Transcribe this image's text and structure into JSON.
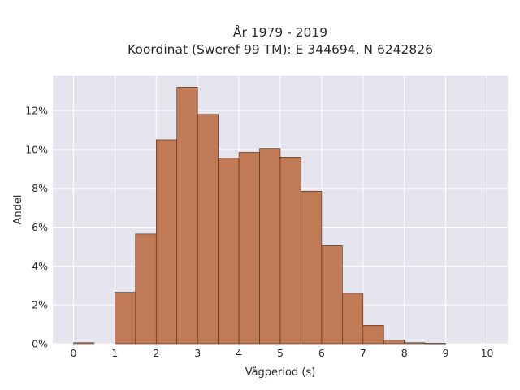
{
  "chart_data": {
    "type": "bar",
    "title_line1": "År 1979 - 2019",
    "title_line2": "Koordinat (Sweref 99 TM): E 344694, N 6242826",
    "xlabel": "Vågperiod (s)",
    "ylabel": "Andel",
    "bin_width": 0.5,
    "bins": [
      {
        "x0": 0.0,
        "value": 0.05
      },
      {
        "x0": 0.5,
        "value": 0.0
      },
      {
        "x0": 1.0,
        "value": 2.65
      },
      {
        "x0": 1.5,
        "value": 5.65
      },
      {
        "x0": 2.0,
        "value": 10.5
      },
      {
        "x0": 2.5,
        "value": 13.2
      },
      {
        "x0": 3.0,
        "value": 11.8
      },
      {
        "x0": 3.5,
        "value": 9.55
      },
      {
        "x0": 4.0,
        "value": 9.85
      },
      {
        "x0": 4.5,
        "value": 10.05
      },
      {
        "x0": 5.0,
        "value": 9.6
      },
      {
        "x0": 5.5,
        "value": 7.85
      },
      {
        "x0": 6.0,
        "value": 5.05
      },
      {
        "x0": 6.5,
        "value": 2.6
      },
      {
        "x0": 7.0,
        "value": 0.95
      },
      {
        "x0": 7.5,
        "value": 0.18
      },
      {
        "x0": 8.0,
        "value": 0.05
      },
      {
        "x0": 8.5,
        "value": 0.02
      }
    ],
    "xlim": [
      -0.5,
      10.5
    ],
    "ylim": [
      0,
      13.8
    ],
    "xticks": [
      "0",
      "1",
      "2",
      "3",
      "4",
      "5",
      "6",
      "7",
      "8",
      "9",
      "10"
    ],
    "yticks": [
      {
        "value": 0,
        "label": "0%"
      },
      {
        "value": 2,
        "label": "2%"
      },
      {
        "value": 4,
        "label": "4%"
      },
      {
        "value": 6,
        "label": "6%"
      },
      {
        "value": 8,
        "label": "8%"
      },
      {
        "value": 10,
        "label": "10%"
      },
      {
        "value": 12,
        "label": "12%"
      }
    ],
    "grid": true,
    "colors": {
      "bar_fill": "#c07a55",
      "bar_stroke": "#4a2a1a",
      "plot_background": "#e5e5ef",
      "grid": "#ffffff"
    }
  }
}
